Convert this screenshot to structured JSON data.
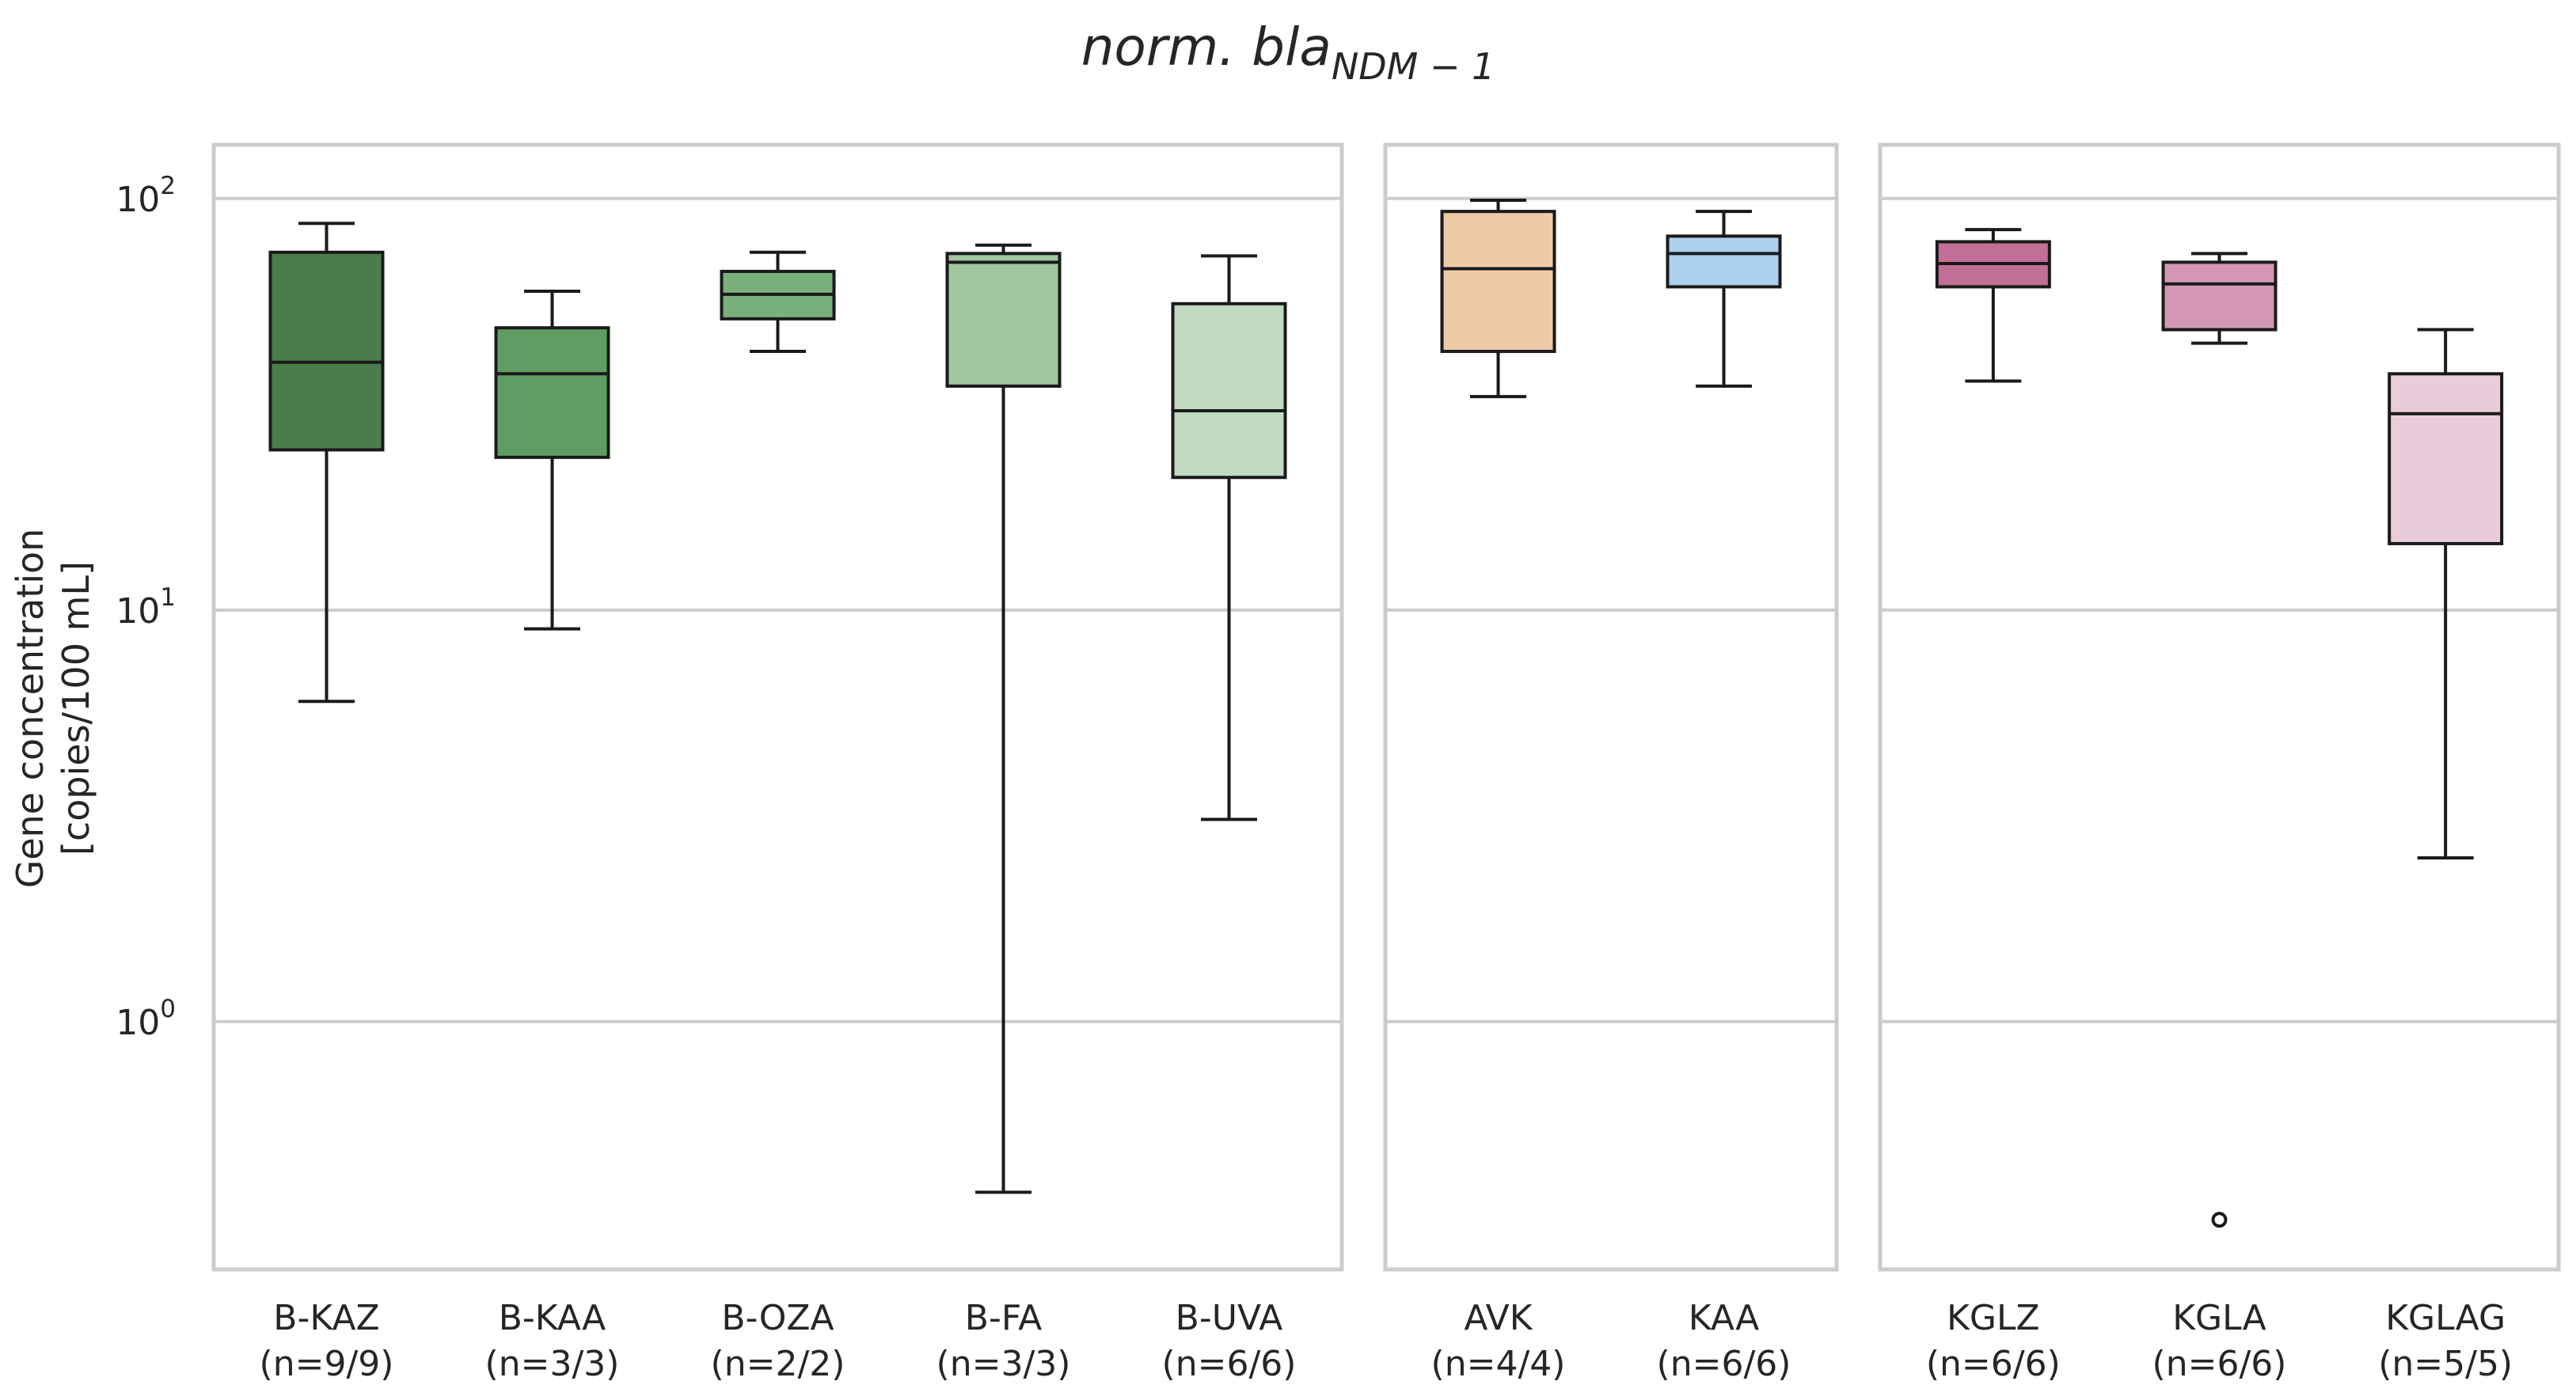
{
  "chart_data": {
    "type": "box",
    "title": "norm. bla",
    "title_subscript": "NDM − 1",
    "ylabel_line1": "Gene concentration",
    "ylabel_line2": "[copies/100 mL]",
    "yscale": "log",
    "ylim": [
      0.25,
      135
    ],
    "yticks": [
      {
        "value": 1,
        "base": "10",
        "exp": "0"
      },
      {
        "value": 10,
        "base": "10",
        "exp": "1"
      },
      {
        "value": 100,
        "base": "10",
        "exp": "2"
      }
    ],
    "grid": true,
    "panels": [
      {
        "categories": [
          {
            "name": "B-KAZ",
            "n": "(n=9/9)",
            "color": "#4a7d4d",
            "whislo": 6.0,
            "q1": 24.5,
            "med": 40.0,
            "q3": 74.0,
            "whishi": 87.0,
            "fliers": []
          },
          {
            "name": "B-KAA",
            "n": "(n=3/3)",
            "color": "#5f9e62",
            "whislo": 9.0,
            "q1": 23.5,
            "med": 37.5,
            "q3": 48.5,
            "whishi": 59.5,
            "fliers": []
          },
          {
            "name": "B-OZA",
            "n": "(n=2/2)",
            "color": "#79b07b",
            "whislo": 42.5,
            "q1": 51.0,
            "med": 58.5,
            "q3": 66.5,
            "whishi": 74.0,
            "fliers": []
          },
          {
            "name": "B-FA",
            "n": "(n=3/3)",
            "color": "#a0c6a2",
            "whislo": 0.385,
            "q1": 35.0,
            "med": 70.0,
            "q3": 73.5,
            "whishi": 77.0,
            "fliers": []
          },
          {
            "name": "B-UVA",
            "n": "(n=6/6)",
            "color": "#c0d9c1",
            "whislo": 3.1,
            "q1": 21.0,
            "med": 30.5,
            "q3": 55.5,
            "whishi": 72.5,
            "fliers": []
          }
        ]
      },
      {
        "categories": [
          {
            "name": "AVK",
            "n": "(n=4/4)",
            "color": "#eecba8",
            "whislo": 33.0,
            "q1": 42.5,
            "med": 67.5,
            "q3": 93.0,
            "whishi": 99.0,
            "fliers": []
          },
          {
            "name": "KAA",
            "n": "(n=6/6)",
            "color": "#acd0ee",
            "whislo": 35.0,
            "q1": 61.0,
            "med": 73.5,
            "q3": 81.0,
            "whishi": 93.0,
            "fliers": []
          }
        ]
      },
      {
        "categories": [
          {
            "name": "KGLZ",
            "n": "(n=6/6)",
            "color": "#c16f96",
            "whislo": 36.0,
            "q1": 61.0,
            "med": 69.5,
            "q3": 78.5,
            "whishi": 84.0,
            "fliers": []
          },
          {
            "name": "KGLA",
            "n": "(n=6/6)",
            "color": "#d397b4",
            "whislo": 44.5,
            "q1": 48.0,
            "med": 62.0,
            "q3": 70.0,
            "whishi": 73.5,
            "fliers": [
              0.33
            ]
          },
          {
            "name": "KGLAG",
            "n": "(n=5/5)",
            "color": "#e9cbd9",
            "whislo": 2.5,
            "q1": 14.5,
            "med": 30.0,
            "q3": 37.5,
            "whishi": 48.0,
            "fliers": []
          }
        ]
      }
    ]
  }
}
